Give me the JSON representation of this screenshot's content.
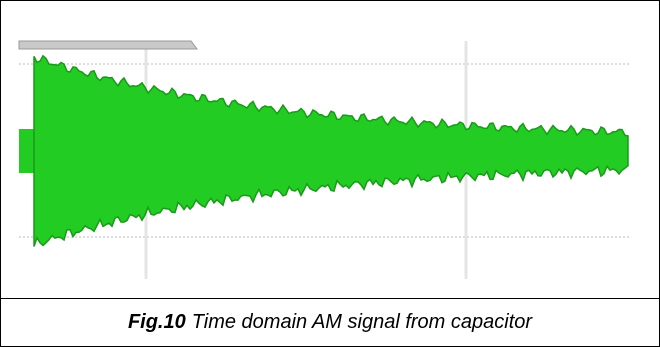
{
  "figure": {
    "label": "Fig.10",
    "caption": "Time domain AM signal from capacitor"
  }
}
